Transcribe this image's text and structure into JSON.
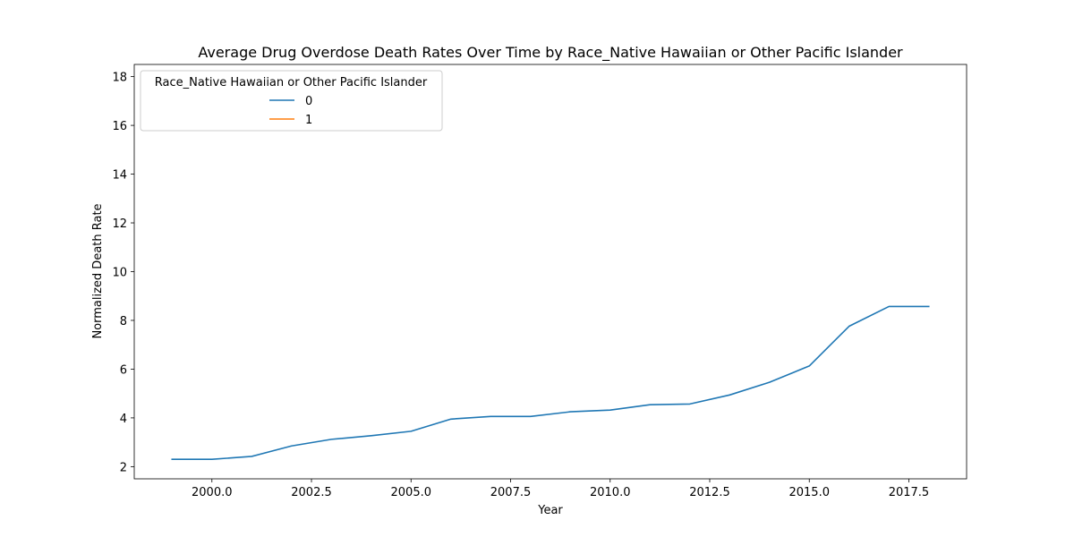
{
  "chart_data": {
    "type": "line",
    "title": "Average Drug Overdose Death Rates Over Time by Race_Native Hawaiian or Other Pacific Islander",
    "xlabel": "Year",
    "ylabel": "Normalized Death Rate",
    "xlim": [
      1998.05,
      2018.95
    ],
    "ylim": [
      1.5,
      18.5
    ],
    "x_ticks": [
      2000.0,
      2002.5,
      2005.0,
      2007.5,
      2010.0,
      2012.5,
      2015.0,
      2017.5
    ],
    "x_tick_labels": [
      "2000.0",
      "2002.5",
      "2005.0",
      "2007.5",
      "2010.0",
      "2012.5",
      "2015.0",
      "2017.5"
    ],
    "y_ticks": [
      2,
      4,
      6,
      8,
      10,
      12,
      14,
      16,
      18
    ],
    "y_tick_labels": [
      "2",
      "4",
      "6",
      "8",
      "10",
      "12",
      "14",
      "16",
      "18"
    ],
    "grid": false,
    "legend": {
      "title": "Race_Native Hawaiian or Other Pacific Islander",
      "placement": "top-left"
    },
    "series": [
      {
        "name": "0",
        "color": "#1f77b4",
        "x": [
          1999,
          2000,
          2001,
          2002,
          2003,
          2004,
          2005,
          2006,
          2007,
          2008,
          2009,
          2010,
          2011,
          2012,
          2013,
          2014,
          2015,
          2016,
          2017,
          2018
        ],
        "y": [
          2.3,
          2.3,
          2.42,
          2.85,
          3.12,
          3.27,
          3.45,
          3.95,
          4.06,
          4.06,
          4.25,
          4.32,
          4.54,
          4.57,
          4.94,
          5.46,
          6.13,
          7.76,
          8.57,
          8.57
        ]
      },
      {
        "name": "1",
        "color": "#ff7f0e",
        "x": [],
        "y": []
      }
    ]
  }
}
